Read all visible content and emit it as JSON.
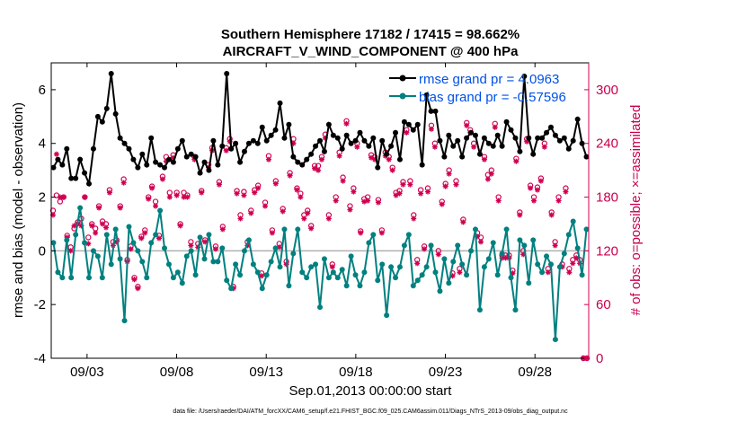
{
  "chart_data": {
    "type": "line",
    "title": "Southern Hemisphere 17182 / 17415 = 98.662%",
    "subtitle": "AIRCRAFT_V_WIND_COMPONENT @ 400 hPa",
    "xlabel": "Sep.01,2013 00:00:00 start",
    "ylabel_left": "rmse and bias (model - observation)",
    "ylabel_right": "# of obs: o=possible; ×=assimilated",
    "xlim": [
      1,
      31
    ],
    "ylim_left": [
      -4,
      7
    ],
    "ylim_right": [
      0,
      330
    ],
    "x_ticks": [
      3,
      8,
      13,
      18,
      23,
      28
    ],
    "x_tick_labels": [
      "09/03",
      "09/08",
      "09/13",
      "09/18",
      "09/23",
      "09/28"
    ],
    "y_ticks_left": [
      -4,
      -2,
      0,
      2,
      4,
      6
    ],
    "y_tick_labels_left": [
      "-4",
      "-2",
      "0",
      "2",
      "4",
      "6"
    ],
    "y_ticks_right": [
      0,
      60,
      120,
      180,
      240,
      300
    ],
    "y_tick_labels_right": [
      "0",
      "60",
      "120",
      "180",
      "240",
      "300"
    ],
    "colors": {
      "rmse": "#000000",
      "bias": "#00807f",
      "obs": "#d00050",
      "zero_line": "#b0b0b0"
    },
    "legend": [
      {
        "label": "rmse grand pr = 4.0963",
        "series": "rmse"
      },
      {
        "label": "bias grand pr = -0.57596",
        "series": "bias"
      }
    ],
    "series": [
      {
        "name": "rmse",
        "values": [
          3.1,
          3.4,
          3.2,
          3.8,
          2.7,
          2.7,
          3.4,
          2.9,
          2.5,
          3.8,
          5.0,
          4.8,
          5.3,
          6.6,
          5.1,
          4.2,
          4.0,
          3.8,
          3.4,
          3.1,
          3.6,
          3.2,
          4.2,
          3.3,
          3.2,
          3.1,
          3.4,
          3.3,
          3.8,
          4.1,
          3.5,
          3.6,
          3.5,
          2.9,
          3.3,
          3.0,
          4.1,
          3.2,
          3.9,
          6.6,
          3.8,
          4.0,
          3.3,
          3.7,
          4.0,
          4.1,
          4.0,
          4.6,
          4.1,
          4.3,
          4.5,
          5.5,
          4.2,
          4.7,
          3.5,
          3.3,
          3.2,
          3.4,
          3.6,
          3.9,
          4.1,
          3.7,
          4.7,
          4.3,
          4.2,
          3.8,
          4.3,
          4.0,
          4.1,
          4.4,
          4.1,
          3.9,
          4.2,
          3.1,
          4.1,
          3.6,
          3.9,
          4.4,
          3.4,
          4.8,
          4.7,
          4.5,
          4.7,
          3.2,
          5.8,
          5.2,
          5.2,
          4.1,
          3.5,
          4.3,
          3.9,
          4.1,
          3.5,
          4.2,
          4.4,
          4.3,
          3.6,
          4.2,
          4.0,
          3.9,
          4.3,
          3.9,
          4.8,
          4.5,
          4.2,
          3.7,
          6.5,
          4.2,
          3.6,
          4.2,
          4.2,
          4.4,
          4.6,
          4.3,
          4.1,
          4.2,
          3.8,
          4.1,
          4.9,
          4.0,
          3.5
        ]
      },
      {
        "name": "bias",
        "values": [
          0.3,
          -0.8,
          -1.0,
          0.4,
          -1.0,
          0.6,
          1.6,
          0.3,
          -1.0,
          0.0,
          -0.2,
          -1.0,
          0.6,
          -0.5,
          0.8,
          -0.3,
          -2.6,
          0.9,
          0.3,
          0.0,
          -0.4,
          -1.0,
          0.3,
          0.6,
          1.5,
          0.1,
          -0.5,
          -1.0,
          -0.8,
          -1.2,
          -0.2,
          0.0,
          -0.9,
          0.5,
          -0.3,
          0.6,
          -0.4,
          -0.4,
          0.1,
          -1.1,
          -1.4,
          -0.5,
          -0.9,
          0.0,
          0.4,
          -0.5,
          -0.8,
          -1.4,
          -0.9,
          -0.4,
          0.1,
          -0.6,
          0.8,
          -1.3,
          -0.1,
          0.8,
          -0.8,
          -1.0,
          -0.6,
          -0.5,
          -2.1,
          -0.3,
          -1.0,
          -0.8,
          -1.0,
          -0.7,
          -1.3,
          -0.2,
          -0.9,
          -1.3,
          -0.8,
          0.3,
          0.6,
          -1.1,
          -0.5,
          -2.4,
          -0.6,
          -1.0,
          -0.6,
          0.2,
          0.6,
          -1.3,
          -1.1,
          -0.9,
          -0.6,
          0.2,
          -0.8,
          -1.5,
          -0.3,
          -1.2,
          -0.4,
          0.2,
          -0.5,
          -0.9,
          0.0,
          0.8,
          -2.2,
          -0.6,
          -0.3,
          0.3,
          -0.9,
          -0.1,
          0.8,
          -1.0,
          -2.2,
          0.4,
          0.2,
          -1.2,
          0.4,
          -0.5,
          -0.8,
          -0.2,
          -0.5,
          -3.3,
          -0.6,
          -0.1,
          0.6,
          1.1,
          0.1,
          -0.9,
          0.8
        ]
      },
      {
        "name": "obs_possible",
        "values": [
          165,
          182,
          175,
          180,
          137,
          124,
          145,
          152,
          156,
          180,
          135,
          150,
          145,
          170,
          153,
          150,
          188,
          130,
          132,
          170,
          200,
          110,
          125,
          90,
          80,
          136,
          143,
          180,
          192,
          175,
          137,
          203,
          225,
          185,
          227,
          185,
          150,
          185,
          182,
          130,
          225,
          128,
          187,
          132,
          216,
          235,
          125,
          197,
          147,
          235,
          245,
          80,
          187,
          160,
          186,
          130,
          165,
          188,
          193,
          95,
          174,
          226,
          143,
          198,
          128,
          167,
          108,
          207,
          245,
          190,
          184,
          160,
          165,
          148,
          215,
          215,
          225,
          250,
          160,
          105,
          180,
          230,
          202,
          265,
          170,
          190,
          240,
          142,
          178,
          180,
          227,
          225,
          177,
          143,
          230,
          225,
          213,
          185,
          187,
          197,
          255,
          198,
          160,
          110,
          188,
          125,
          190,
          260,
          240,
          120,
          175,
          195,
          210,
          95,
          198,
          100,
          155,
          263,
          255,
          240,
          140,
          135,
          225,
          205,
          210,
          262,
          180,
          115,
          115,
          115,
          98,
          223,
          163,
          120,
          245,
          193,
          180,
          191,
          201,
          240,
          100,
          163,
          130,
          180,
          105,
          190,
          100,
          110,
          115,
          110,
          0,
          0
        ]
      },
      {
        "name": "obs_assimilated",
        "values": [
          160,
          228,
          180,
          180,
          135,
          120,
          148,
          150,
          148,
          180,
          128,
          148,
          140,
          168,
          150,
          146,
          185,
          126,
          130,
          168,
          196,
          108,
          122,
          88,
          78,
          134,
          140,
          178,
          190,
          170,
          134,
          200,
          220,
          180,
          224,
          182,
          148,
          180,
          180,
          126,
          222,
          124,
          185,
          130,
          213,
          232,
          122,
          194,
          144,
          232,
          242,
          78,
          184,
          156,
          182,
          126,
          162,
          185,
          190,
          92,
          170,
          222,
          140,
          195,
          124,
          164,
          105,
          204,
          240,
          188,
          180,
          156,
          162,
          145,
          212,
          210,
          222,
          246,
          156,
          102,
          176,
          226,
          198,
          262,
          166,
          186,
          236,
          140,
          175,
          176,
          224,
          222,
          174,
          140,
          226,
          222,
          210,
          182,
          184,
          194,
          252,
          194,
          156,
          106,
          184,
          122,
          186,
          256,
          236,
          116,
          172,
          192,
          206,
          92,
          194,
          96,
          152,
          260,
          252,
          236,
          136,
          130,
          222,
          200,
          206,
          258,
          176,
          112,
          112,
          112,
          95,
          220,
          160,
          116,
          242,
          190,
          176,
          188,
          198,
          236,
          96,
          160,
          126,
          176,
          102,
          186,
          96,
          106,
          112,
          106,
          0,
          0
        ]
      }
    ],
    "grid": false
  },
  "footer": {
    "data_file": "data file: /Users/raeder/DAI/ATM_forcXX/CAM6_setup/f.e21.FHIST_BGC.f09_025.CAM6assim.011/Diags_NTrS_2013-09/obs_diag_output.nc"
  }
}
